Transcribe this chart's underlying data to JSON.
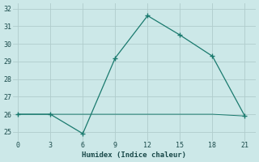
{
  "x": [
    0,
    3,
    6,
    9,
    12,
    15,
    18,
    21
  ],
  "y": [
    26.0,
    26.0,
    24.9,
    29.2,
    31.6,
    30.5,
    29.3,
    25.9
  ],
  "y_flat": [
    0,
    3,
    6,
    9,
    12,
    15,
    18,
    21
  ],
  "y_flat_vals": [
    26.0,
    26.0,
    26.0,
    26.0,
    26.0,
    26.0,
    26.0,
    25.9
  ],
  "line_color": "#1a7a6e",
  "bg_color": "#cce8e8",
  "grid_color": "#b0cccc",
  "xlabel": "Humidex (Indice chaleur)",
  "xlim": [
    -0.5,
    22.0
  ],
  "ylim": [
    24.5,
    32.3
  ],
  "xticks": [
    0,
    3,
    6,
    9,
    12,
    15,
    18,
    21
  ],
  "yticks": [
    25,
    26,
    27,
    28,
    29,
    30,
    31,
    32
  ]
}
